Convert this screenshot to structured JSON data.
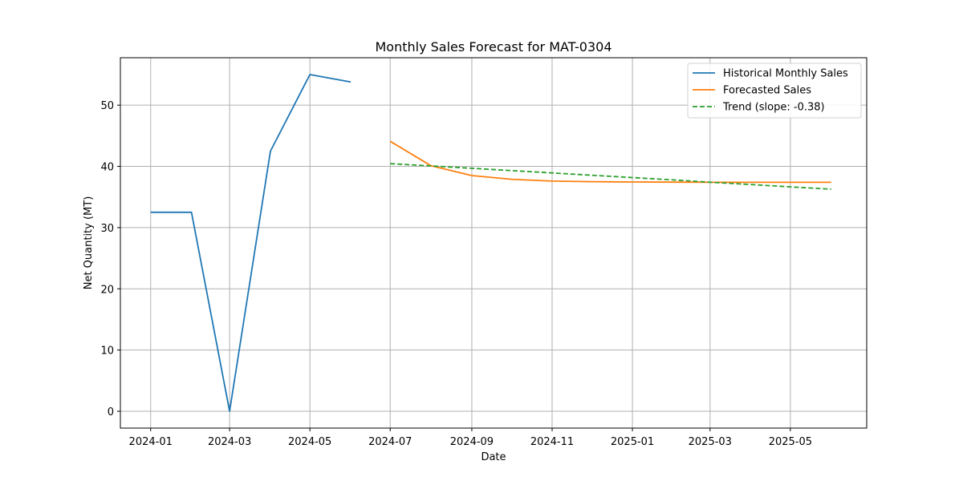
{
  "chart_data": {
    "type": "line",
    "title": "Monthly Sales Forecast for MAT-0304",
    "xlabel": "Date",
    "ylabel": "Net Quantity (MT)",
    "xlim": [
      "2023-12-09",
      "2025-06-28"
    ],
    "ylim": [
      -2.75,
      57.75
    ],
    "grid": true,
    "legend_position": "top-right",
    "x_ticks": [
      "2024-01",
      "2024-03",
      "2024-05",
      "2024-07",
      "2024-09",
      "2024-11",
      "2025-01",
      "2025-03",
      "2025-05"
    ],
    "y_ticks": [
      0,
      10,
      20,
      30,
      40,
      50
    ],
    "series": [
      {
        "name": "Historical Monthly Sales",
        "color": "#1f77b4",
        "style": "solid",
        "x": [
          "2024-01-01",
          "2024-02-01",
          "2024-03-01",
          "2024-04-01",
          "2024-05-01",
          "2024-06-01"
        ],
        "y": [
          32.5,
          32.5,
          0.0,
          42.5,
          55.0,
          53.8
        ]
      },
      {
        "name": "Forecasted Sales",
        "color": "#ff7f0e",
        "style": "solid",
        "x": [
          "2024-07-01",
          "2024-08-01",
          "2024-09-01",
          "2024-10-01",
          "2024-11-01",
          "2024-12-01",
          "2025-01-01",
          "2025-02-01",
          "2025-03-01",
          "2025-04-01",
          "2025-05-01",
          "2025-06-01"
        ],
        "y": [
          44.1,
          40.1,
          38.5,
          37.9,
          37.6,
          37.5,
          37.45,
          37.42,
          37.4,
          37.4,
          37.4,
          37.4
        ]
      },
      {
        "name": "Trend (slope: -0.38)",
        "color": "#2ca02c",
        "style": "dashed",
        "x": [
          "2024-07-01",
          "2024-08-01",
          "2024-09-01",
          "2024-10-01",
          "2024-11-01",
          "2024-12-01",
          "2025-01-01",
          "2025-02-01",
          "2025-03-01",
          "2025-04-01",
          "2025-05-01",
          "2025-06-01"
        ],
        "y": [
          40.45,
          40.07,
          39.69,
          39.31,
          38.93,
          38.55,
          38.17,
          37.79,
          37.41,
          37.03,
          36.65,
          36.27
        ]
      }
    ]
  }
}
